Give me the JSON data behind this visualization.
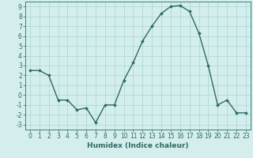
{
  "x": [
    0,
    1,
    2,
    3,
    4,
    5,
    6,
    7,
    8,
    9,
    10,
    11,
    12,
    13,
    14,
    15,
    16,
    17,
    18,
    19,
    20,
    21,
    22,
    23
  ],
  "y": [
    2.5,
    2.5,
    2.0,
    -0.5,
    -0.5,
    -1.5,
    -1.3,
    -2.8,
    -1.0,
    -1.0,
    1.5,
    3.3,
    5.5,
    7.0,
    8.3,
    9.0,
    9.1,
    8.5,
    6.3,
    3.0,
    -1.0,
    -0.5,
    -1.8,
    -1.8
  ],
  "line_color": "#2e6b5e",
  "marker": "D",
  "marker_size": 2.0,
  "bg_color": "#d4eeee",
  "grid_color": "#aad4d4",
  "xlabel": "Humidex (Indice chaleur)",
  "ylim": [
    -3.5,
    9.5
  ],
  "xlim": [
    -0.5,
    23.5
  ],
  "yticks": [
    -3,
    -2,
    -1,
    0,
    1,
    2,
    3,
    4,
    5,
    6,
    7,
    8,
    9
  ],
  "xticks": [
    0,
    1,
    2,
    3,
    4,
    5,
    6,
    7,
    8,
    9,
    10,
    11,
    12,
    13,
    14,
    15,
    16,
    17,
    18,
    19,
    20,
    21,
    22,
    23
  ],
  "tick_label_fontsize": 5.5,
  "xlabel_fontsize": 6.5,
  "line_width": 1.0
}
